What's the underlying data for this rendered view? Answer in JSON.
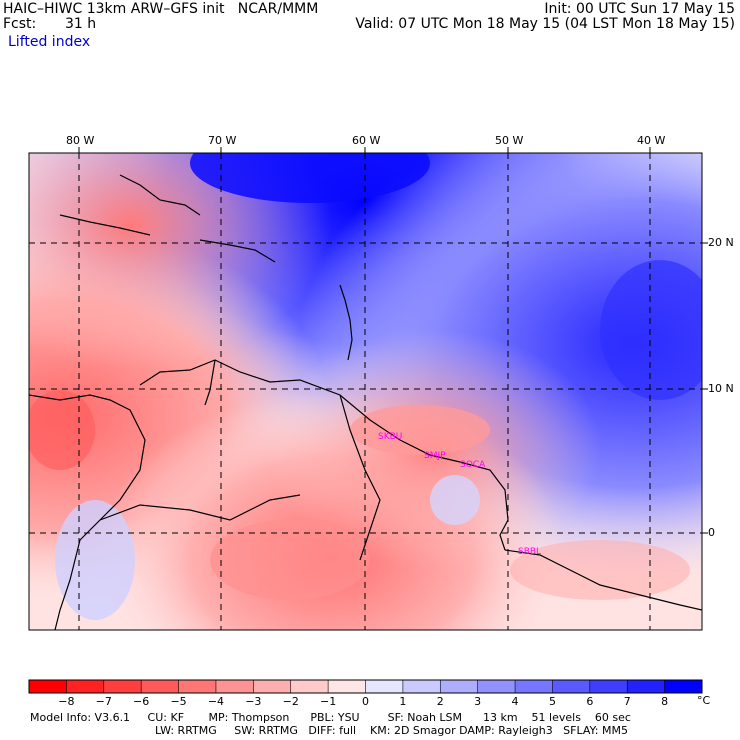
{
  "header": {
    "title_line": "HAIC–HIWC 13km ARW–GFS init   NCAR/MMM",
    "forecast_label": "Fcst:",
    "forecast_hours": "31 h",
    "variable": "Lifted index",
    "init": "Init: 00 UTC Sun 17 May 15",
    "valid": "Valid: 07 UTC Mon 18 May 15 (04 LST Mon 18 May 15)"
  },
  "axes": {
    "lon_labels": [
      "80 W",
      "70 W",
      "60 W",
      "50 W",
      "40 W"
    ],
    "lat_labels": [
      "20 N",
      "10 N",
      "0"
    ]
  },
  "stations": [
    "SKBU",
    "SMJP",
    "SOCA",
    "SBBL"
  ],
  "colorbar": {
    "labels": [
      "−8",
      "−7",
      "−6",
      "−5",
      "−4",
      "−3",
      "−2",
      "−1",
      "0",
      "1",
      "2",
      "3",
      "4",
      "5",
      "6",
      "7",
      "8"
    ],
    "unit": "°C",
    "colors": [
      "#ff0000",
      "#ff2626",
      "#ff4545",
      "#ff6464",
      "#ff8383",
      "#ffa2a2",
      "#ffc1c1",
      "#ffdfdf",
      "#ffffff",
      "#dfdfff",
      "#c1c1ff",
      "#a2a2ff",
      "#8383ff",
      "#6464ff",
      "#4545ff",
      "#2626ff",
      "#0000ff"
    ]
  },
  "footer": {
    "line1": "Model Info: V3.6.1     CU: KF       MP: Thompson      PBL: YSU        SF: Noah LSM      13 km    51 levels    60 sec",
    "line2": "LW: RRTMG     SW: RRTMG   DIFF: full    KM: 2D Smagor DAMP: Rayleigh3   SFLAY: MM5"
  }
}
